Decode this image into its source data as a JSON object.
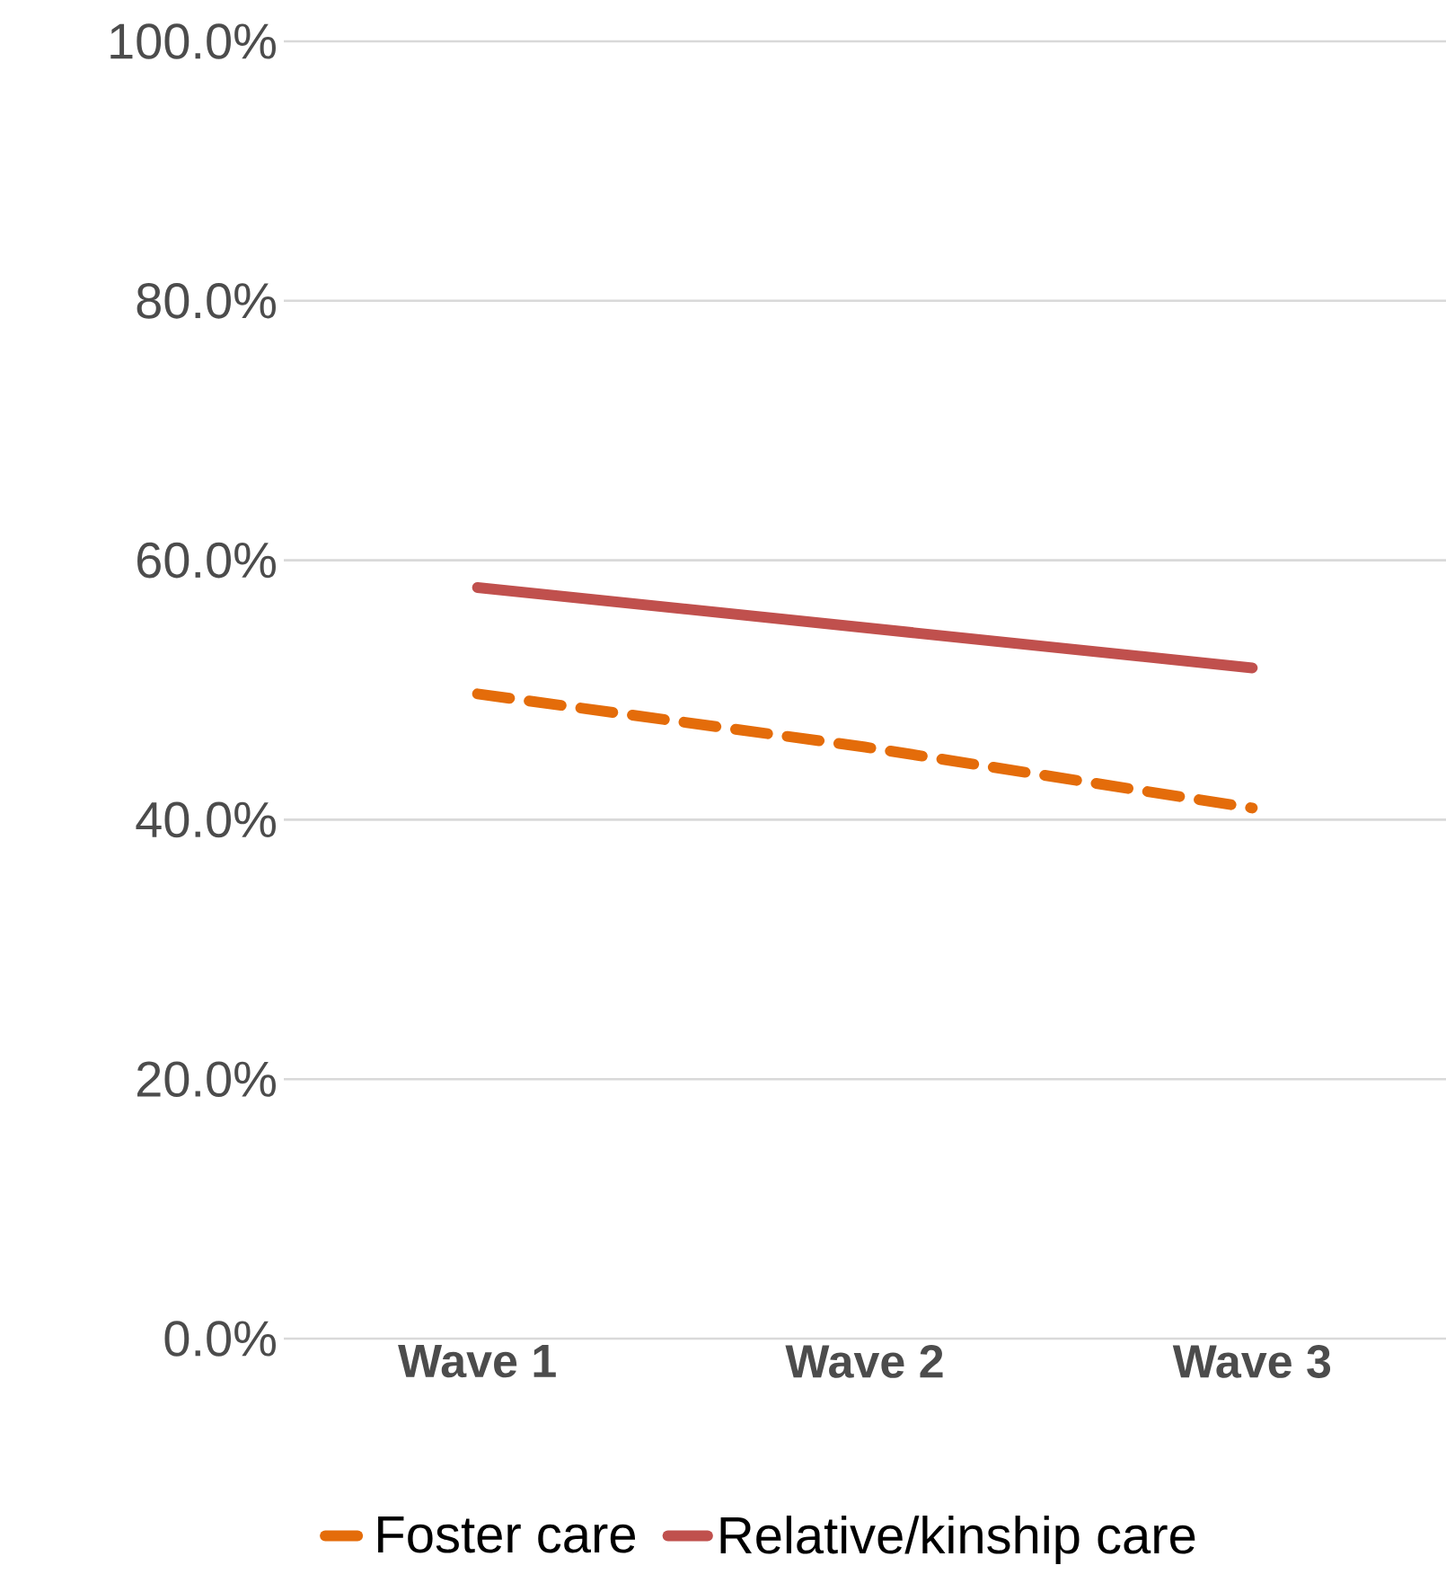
{
  "chart_data": {
    "type": "line",
    "categories": [
      "Wave 1",
      "Wave 2",
      "Wave 3"
    ],
    "series": [
      {
        "name": "Foster care",
        "color": "#e46c0a",
        "line_style": "dashed",
        "values": [
          49.7,
          45.6,
          40.9
        ]
      },
      {
        "name": "Relative/kinship care",
        "color": "#c0504d",
        "line_style": "solid",
        "values": [
          57.9,
          54.8,
          51.7
        ]
      }
    ],
    "ylim": [
      0,
      100
    ],
    "yticks": [
      {
        "value": 0,
        "label": "0.0%"
      },
      {
        "value": 20,
        "label": "20.0%"
      },
      {
        "value": 40,
        "label": "40.0%"
      },
      {
        "value": 60,
        "label": "60.0%"
      },
      {
        "value": 80,
        "label": "80.0%"
      },
      {
        "value": 100,
        "label": "100.0%"
      }
    ],
    "grid": "y",
    "legend": "bottom"
  }
}
